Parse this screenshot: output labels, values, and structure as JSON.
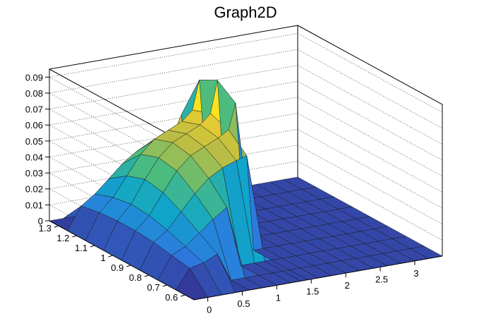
{
  "chart_data": {
    "type": "surface",
    "title": "Graph2D",
    "xlabel": "",
    "ylabel": "",
    "zlabel": "",
    "xlim": [
      -0.2,
      3.4
    ],
    "ylim": [
      0.55,
      1.35
    ],
    "zlim": [
      0,
      0.095
    ],
    "grid": true,
    "colormap": [
      "#352a87",
      "#2d7adf",
      "#0fa6c9",
      "#4cbc7e",
      "#b9bd45",
      "#f9d12a",
      "#f9fb0e"
    ],
    "x_ticks": [
      "0",
      "0.5",
      "1",
      "1.5",
      "2",
      "2.5",
      "3"
    ],
    "x_tick_values": [
      0,
      0.5,
      1,
      1.5,
      2,
      2.5,
      3
    ],
    "y_ticks": [
      "0.6",
      "0.7",
      "0.8",
      "0.9",
      "1",
      "1.1",
      "1.2",
      "1.3"
    ],
    "y_tick_values": [
      0.6,
      0.7,
      0.8,
      0.9,
      1.0,
      1.1,
      1.2,
      1.3
    ],
    "z_ticks": [
      "0",
      "0.01",
      "0.02",
      "0.03",
      "0.04",
      "0.05",
      "0.06",
      "0.07",
      "0.08",
      "0.09"
    ],
    "z_tick_values": [
      0,
      0.01,
      0.02,
      0.03,
      0.04,
      0.05,
      0.06,
      0.07,
      0.08,
      0.09
    ],
    "surface_x": [
      -0.2,
      0.0,
      0.2,
      0.4,
      0.6,
      0.8,
      1.0,
      1.2,
      1.35,
      1.45,
      1.6,
      1.8,
      2.0,
      2.2,
      2.4,
      2.6,
      2.8,
      3.0,
      3.2,
      3.4
    ],
    "surface_y": [
      0.55,
      0.65,
      0.75,
      0.85,
      0.95,
      1.05,
      1.15,
      1.25,
      1.35
    ],
    "surface_z": [
      [
        0.0,
        0.0,
        0.0,
        0.0,
        0.0,
        0.0,
        0.0,
        0.0,
        0.0,
        0.0,
        0.0,
        0.0,
        0.0,
        0.0,
        0.0,
        0.0,
        0.0,
        0.0,
        0.0,
        0.0
      ],
      [
        0.0,
        0.012,
        0.014,
        0.018,
        0.0,
        0.0,
        0.0,
        0.0,
        0.0,
        0.0,
        0.0,
        0.0,
        0.0,
        0.0,
        0.0,
        0.0,
        0.0,
        0.0,
        0.0,
        0.0
      ],
      [
        0.0,
        0.014,
        0.018,
        0.025,
        0.032,
        0.038,
        0.0,
        0.0,
        0.0,
        0.0,
        0.0,
        0.0,
        0.0,
        0.0,
        0.0,
        0.0,
        0.0,
        0.0,
        0.0,
        0.0
      ],
      [
        0.0,
        0.016,
        0.022,
        0.032,
        0.042,
        0.05,
        0.055,
        0.058,
        0.06,
        0.0,
        0.0,
        0.0,
        0.0,
        0.0,
        0.0,
        0.0,
        0.0,
        0.0,
        0.0,
        0.0
      ],
      [
        0.0,
        0.017,
        0.025,
        0.038,
        0.05,
        0.058,
        0.062,
        0.066,
        0.07,
        0.086,
        0.0,
        0.0,
        0.0,
        0.0,
        0.0,
        0.0,
        0.0,
        0.0,
        0.0,
        0.0
      ],
      [
        0.0,
        0.017,
        0.026,
        0.04,
        0.052,
        0.06,
        0.064,
        0.068,
        0.074,
        0.094,
        0.0,
        0.0,
        0.0,
        0.0,
        0.0,
        0.0,
        0.0,
        0.0,
        0.0,
        0.0
      ],
      [
        0.0,
        0.016,
        0.024,
        0.036,
        0.048,
        0.056,
        0.06,
        0.064,
        0.07,
        0.088,
        0.0,
        0.0,
        0.0,
        0.0,
        0.0,
        0.0,
        0.0,
        0.0,
        0.0,
        0.0
      ],
      [
        0.0,
        0.014,
        0.02,
        0.028,
        0.036,
        0.042,
        0.046,
        0.048,
        0.05,
        0.06,
        0.0,
        0.0,
        0.0,
        0.0,
        0.0,
        0.0,
        0.0,
        0.0,
        0.0,
        0.0
      ],
      [
        0.0,
        0.0,
        0.0,
        0.0,
        0.0,
        0.0,
        0.0,
        0.0,
        0.0,
        0.0,
        0.0,
        0.0,
        0.0,
        0.0,
        0.0,
        0.0,
        0.0,
        0.0,
        0.0,
        0.0
      ]
    ]
  }
}
